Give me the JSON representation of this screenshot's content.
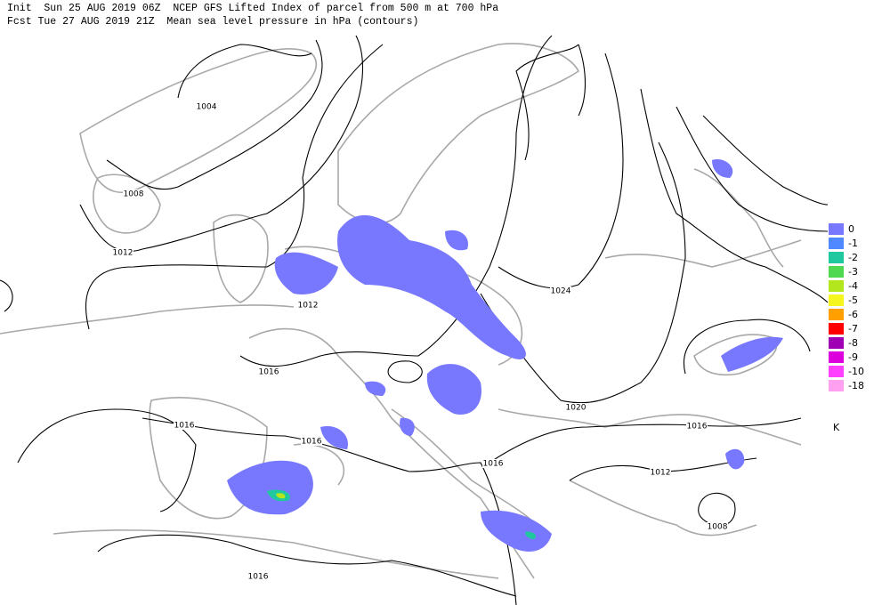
{
  "header": {
    "line1": "Init  Sun 25 AUG 2019 06Z  NCEP GFS Lifted Index of parcel from 500 m at 700 hPa",
    "line2": "Fcst Tue 27 AUG 2019 21Z  Mean sea level pressure in hPa (contours)"
  },
  "legend": {
    "items": [
      {
        "label": "0",
        "color": "#7878ff"
      },
      {
        "label": "-1",
        "color": "#4f88ff"
      },
      {
        "label": "-2",
        "color": "#20c8a0"
      },
      {
        "label": "-3",
        "color": "#50d850"
      },
      {
        "label": "-4",
        "color": "#b4e61e"
      },
      {
        "label": "-5",
        "color": "#f5f520"
      },
      {
        "label": "-6",
        "color": "#ffa000"
      },
      {
        "label": "-7",
        "color": "#ff0000"
      },
      {
        "label": "-8",
        "color": "#a000b4"
      },
      {
        "label": "-9",
        "color": "#dc00dc"
      },
      {
        "label": "-10",
        "color": "#ff40ff"
      },
      {
        "label": "-18",
        "color": "#ffa0f0"
      }
    ],
    "unit": "K"
  },
  "contour_labels": [
    "1004",
    "1008",
    "1012",
    "1012",
    "1016",
    "1016",
    "1016",
    "1016",
    "1016",
    "1020",
    "1024",
    "1016",
    "1012",
    "1008"
  ]
}
